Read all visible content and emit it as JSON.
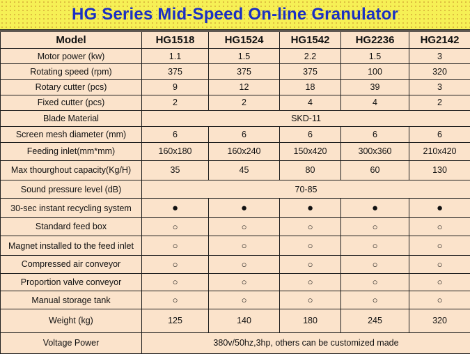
{
  "title": "HG Series Mid-Speed On-line Granulator",
  "header": {
    "model_label": "Model",
    "models": [
      "HG1518",
      "HG1524",
      "HG1542",
      "HG2236",
      "HG2142"
    ]
  },
  "rows": [
    {
      "label": "Motor power (kw)",
      "values": [
        "1.1",
        "1.5",
        "2.2",
        "1.5",
        "3"
      ]
    },
    {
      "label": "Rotating speed (rpm)",
      "values": [
        "375",
        "375",
        "375",
        "100",
        "320"
      ]
    },
    {
      "label": "Rotary cutter (pcs)",
      "values": [
        "9",
        "12",
        "18",
        "39",
        "3"
      ]
    },
    {
      "label": "Fixed cutter (pcs)",
      "values": [
        "2",
        "2",
        "4",
        "4",
        "2"
      ]
    },
    {
      "label": "Blade Material",
      "span_value": "SKD-11"
    },
    {
      "label": "Screen mesh diameter (mm)",
      "values": [
        "6",
        "6",
        "6",
        "6",
        "6"
      ]
    },
    {
      "label": "Feeding inlet(mm*mm)",
      "values": [
        "160x180",
        "160x240",
        "150x420",
        "300x360",
        "210x420"
      ]
    },
    {
      "label": "Max thourghout capacity(Kg/H)",
      "values": [
        "35",
        "45",
        "80",
        "60",
        "130"
      ]
    },
    {
      "label": "Sound pressure level (dB)",
      "span_value": "70-85"
    },
    {
      "label": "30-sec instant recycling system",
      "values": [
        "●",
        "●",
        "●",
        "●",
        "●"
      ]
    },
    {
      "label": "Standard feed box",
      "values": [
        "○",
        "○",
        "○",
        "○",
        "○"
      ]
    },
    {
      "label": "Magnet installed to the feed inlet",
      "values": [
        "○",
        "○",
        "○",
        "○",
        "○"
      ]
    },
    {
      "label": "Compressed air conveyor",
      "values": [
        "○",
        "○",
        "○",
        "○",
        "○"
      ]
    },
    {
      "label": "Proportion valve conveyor",
      "values": [
        "○",
        "○",
        "○",
        "○",
        "○"
      ]
    },
    {
      "label": "Manual storage tank",
      "values": [
        "○",
        "○",
        "○",
        "○",
        "○"
      ]
    },
    {
      "label": "Weight (kg)",
      "values": [
        "125",
        "140",
        "180",
        "245",
        "320"
      ]
    },
    {
      "label": "Voltage Power",
      "span_value": "380v/50hz,3hp, others can be customized made"
    }
  ],
  "colors": {
    "banner_bg": "#f6f055",
    "title_color": "#1a2fc4",
    "table_bg": "#fbe3cb",
    "border": "#1e1e1e"
  }
}
